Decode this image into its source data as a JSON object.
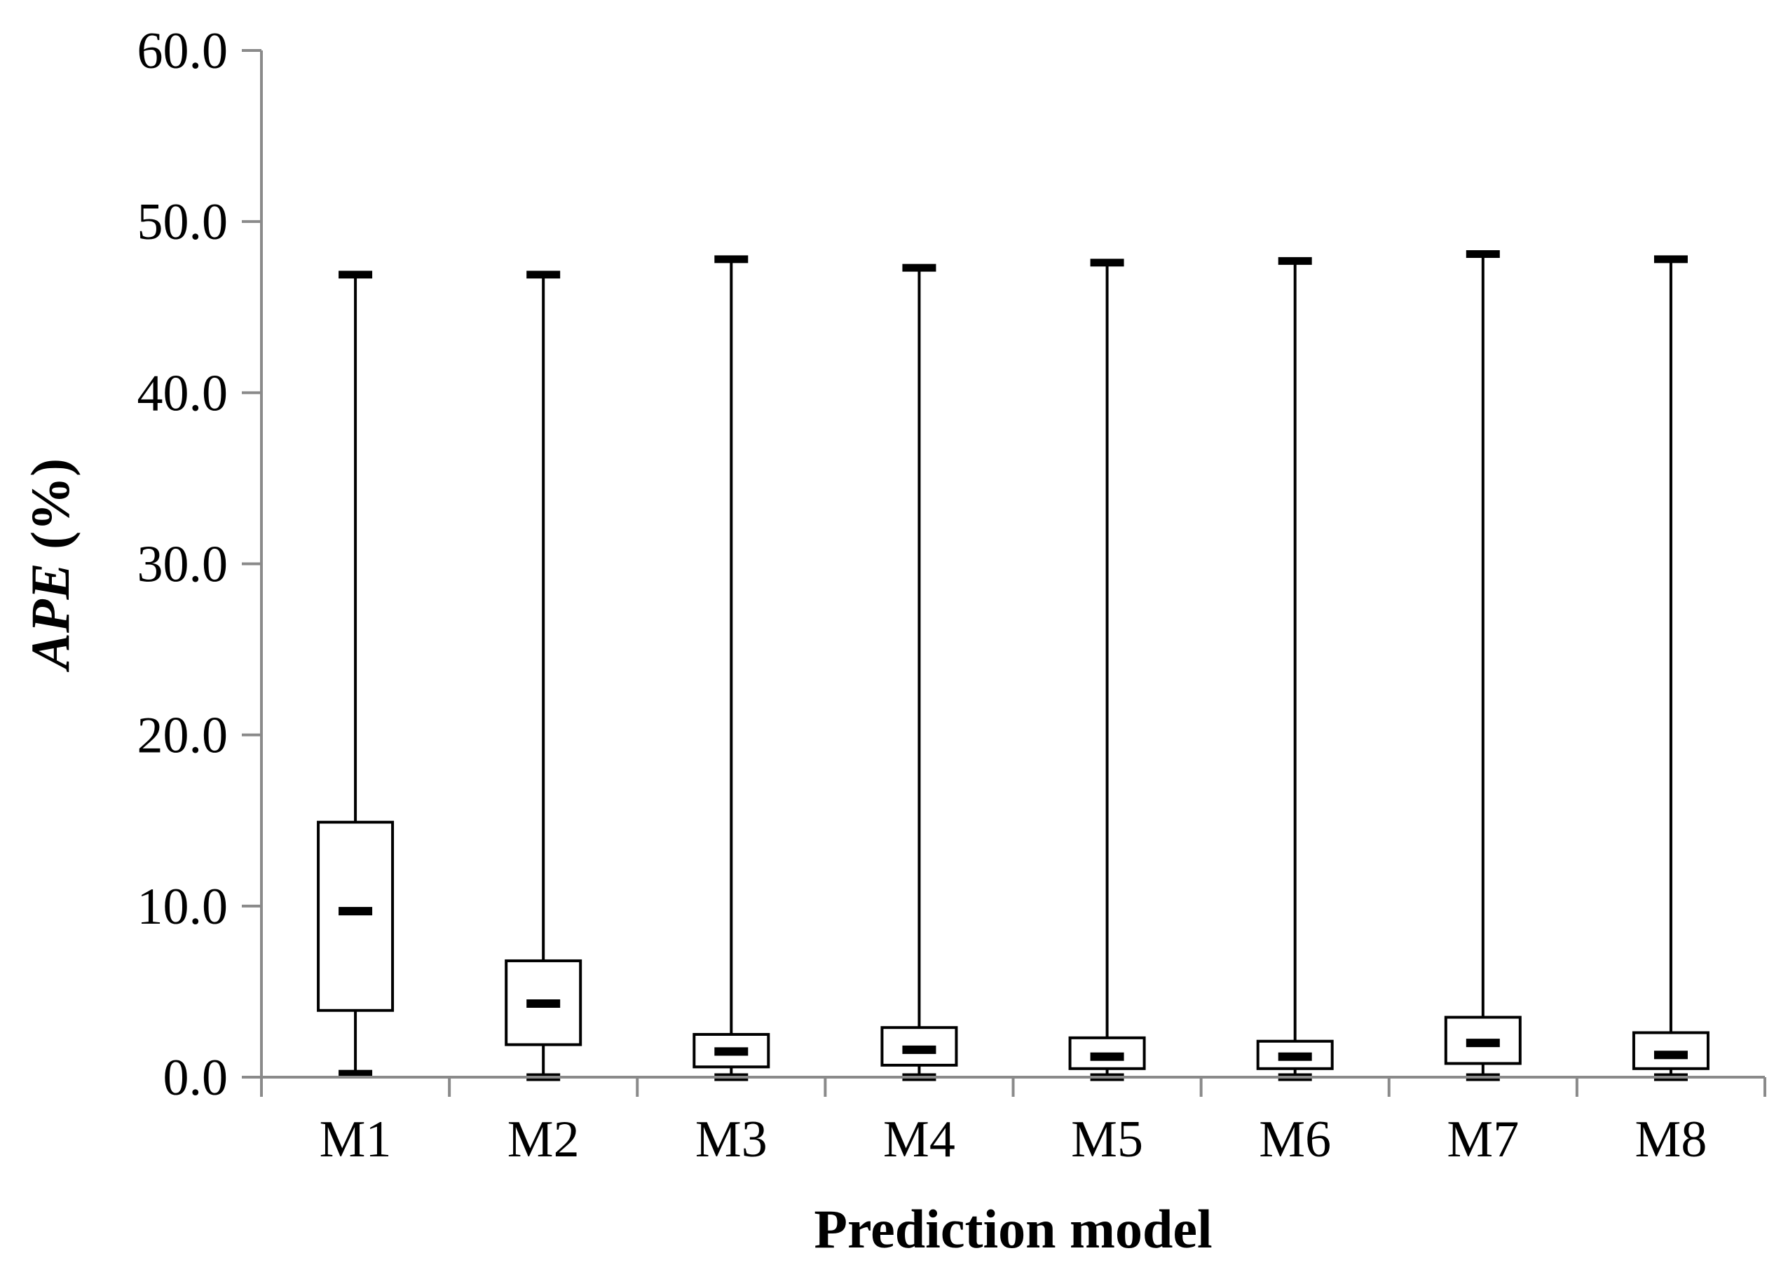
{
  "chart_data": {
    "type": "box",
    "title": "",
    "xlabel": "Prediction model",
    "ylabel_italic": "APE",
    "ylabel_suffix": " (%)",
    "ylim": [
      0,
      60
    ],
    "yticks": [
      "0.0",
      "10.0",
      "20.0",
      "30.0",
      "40.0",
      "50.0",
      "60.0"
    ],
    "categories": [
      "M1",
      "M2",
      "M3",
      "M4",
      "M5",
      "M6",
      "M7",
      "M8"
    ],
    "boxes": [
      {
        "label": "M1",
        "min": 0.2,
        "q1": 3.9,
        "median": 9.7,
        "q3": 14.9,
        "max": 46.9
      },
      {
        "label": "M2",
        "min": 0.0,
        "q1": 1.9,
        "median": 4.3,
        "q3": 6.8,
        "max": 46.9
      },
      {
        "label": "M3",
        "min": 0.0,
        "q1": 0.6,
        "median": 1.5,
        "q3": 2.5,
        "max": 47.8
      },
      {
        "label": "M4",
        "min": 0.0,
        "q1": 0.7,
        "median": 1.6,
        "q3": 2.9,
        "max": 47.3
      },
      {
        "label": "M5",
        "min": 0.0,
        "q1": 0.5,
        "median": 1.2,
        "q3": 2.3,
        "max": 47.6
      },
      {
        "label": "M6",
        "min": 0.0,
        "q1": 0.5,
        "median": 1.2,
        "q3": 2.1,
        "max": 47.7
      },
      {
        "label": "M7",
        "min": 0.0,
        "q1": 0.8,
        "median": 2.0,
        "q3": 3.5,
        "max": 48.1
      },
      {
        "label": "M8",
        "min": 0.0,
        "q1": 0.5,
        "median": 1.3,
        "q3": 2.6,
        "max": 47.8
      }
    ],
    "grid": false,
    "legend": "none"
  }
}
